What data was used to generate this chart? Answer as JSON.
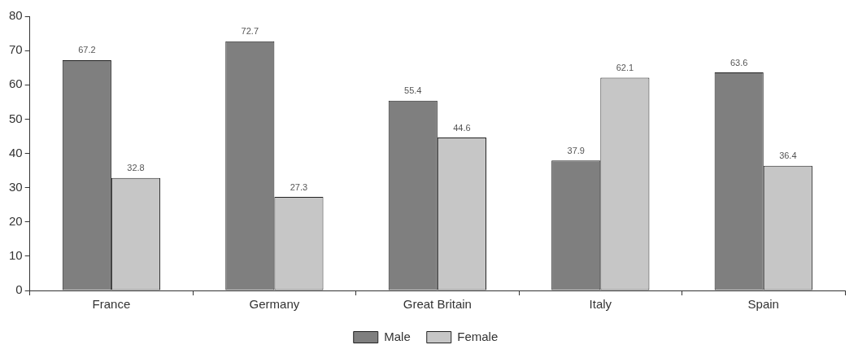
{
  "chart_data": {
    "type": "bar",
    "categories": [
      "France",
      "Germany",
      "Great Britain",
      "Italy",
      "Spain"
    ],
    "series": [
      {
        "name": "Male",
        "color": "#7f7f7f",
        "values": [
          67.2,
          72.7,
          55.4,
          37.9,
          63.6
        ]
      },
      {
        "name": "Female",
        "color": "#c6c6c6",
        "values": [
          32.8,
          27.3,
          44.6,
          62.1,
          36.4
        ]
      }
    ],
    "ylim": [
      0,
      80
    ],
    "yticks": [
      0,
      10,
      20,
      30,
      40,
      50,
      60,
      70,
      80
    ],
    "grid": false,
    "legend": "bottom",
    "data_labels": true
  }
}
